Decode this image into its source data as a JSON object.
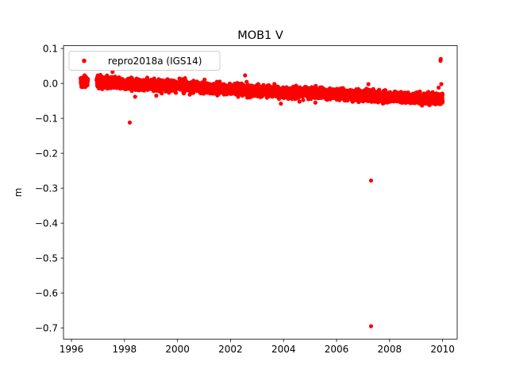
{
  "chart_data": {
    "type": "scatter",
    "title": "MOB1 V",
    "xlabel": "",
    "ylabel": "m",
    "xlim": [
      1995.7,
      2010.55
    ],
    "ylim": [
      -0.732,
      0.108
    ],
    "xticks": [
      1996,
      1998,
      2000,
      2002,
      2004,
      2006,
      2008,
      2010
    ],
    "yticks": [
      0.1,
      0.0,
      -0.1,
      -0.2,
      -0.3,
      -0.4,
      -0.5,
      -0.6,
      -0.7
    ],
    "ytick_labels": [
      "0.1",
      "0.0",
      "−0.1",
      "−0.2",
      "−0.3",
      "−0.4",
      "−0.5",
      "−0.6",
      "−0.7"
    ],
    "grid": false,
    "legend_position": "top-left",
    "color": "#ff0000",
    "series": [
      {
        "name": "repro2018a (IGS14)",
        "trend": [
          [
            1996.35,
            0.005
          ],
          [
            1997.0,
            0.004
          ],
          [
            1998.0,
            -0.002
          ],
          [
            1999.0,
            -0.003
          ],
          [
            2000.0,
            -0.007
          ],
          [
            2001.0,
            -0.012
          ],
          [
            2002.0,
            -0.017
          ],
          [
            2003.0,
            -0.021
          ],
          [
            2004.0,
            -0.024
          ],
          [
            2005.0,
            -0.027
          ],
          [
            2006.0,
            -0.03
          ],
          [
            2007.0,
            -0.035
          ],
          [
            2008.0,
            -0.038
          ],
          [
            2009.0,
            -0.042
          ],
          [
            2010.0,
            -0.045
          ]
        ],
        "gap": [
          1996.62,
          1996.95
        ],
        "scatter_sd": 0.0075,
        "outliers": [
          [
            1997.55,
            0.033
          ],
          [
            1998.2,
            -0.112
          ],
          [
            1998.4,
            -0.038
          ],
          [
            1999.2,
            -0.035
          ],
          [
            2002.55,
            0.023
          ],
          [
            2003.9,
            -0.058
          ],
          [
            2004.6,
            -0.052
          ],
          [
            2005.2,
            -0.055
          ],
          [
            2007.2,
            -0.002
          ],
          [
            2007.3,
            -0.278
          ],
          [
            2007.3,
            -0.695
          ],
          [
            2009.85,
            -0.012
          ],
          [
            2009.92,
            0.065
          ],
          [
            2009.93,
            0.07
          ],
          [
            2009.95,
            -0.002
          ]
        ]
      }
    ]
  }
}
